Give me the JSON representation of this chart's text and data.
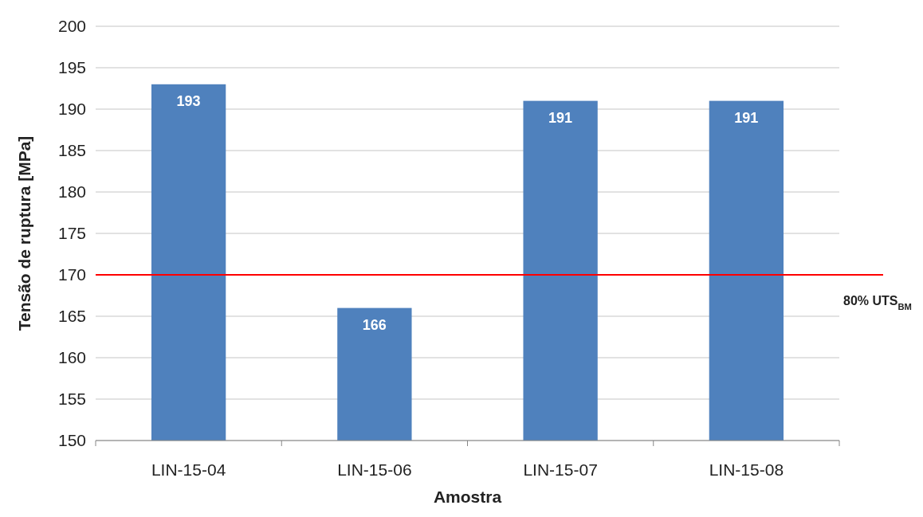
{
  "chart_data": {
    "type": "bar",
    "xlabel": "Amostra",
    "ylabel": "Tensão de ruptura [MPa]",
    "categories": [
      "LIN-15-04",
      "LIN-15-06",
      "LIN-15-07",
      "LIN-15-08"
    ],
    "values": [
      193,
      166,
      191,
      191
    ],
    "data_labels": true,
    "color": "#4f81bd",
    "ylim": [
      150,
      200
    ],
    "yticks": [
      150,
      155,
      160,
      165,
      170,
      175,
      180,
      185,
      190,
      195,
      200
    ],
    "grid": "y",
    "ref_lines": [
      {
        "axis": "y",
        "value": 170,
        "label": "80% UTS$_{BM}$",
        "color": "#ff0000"
      }
    ]
  }
}
